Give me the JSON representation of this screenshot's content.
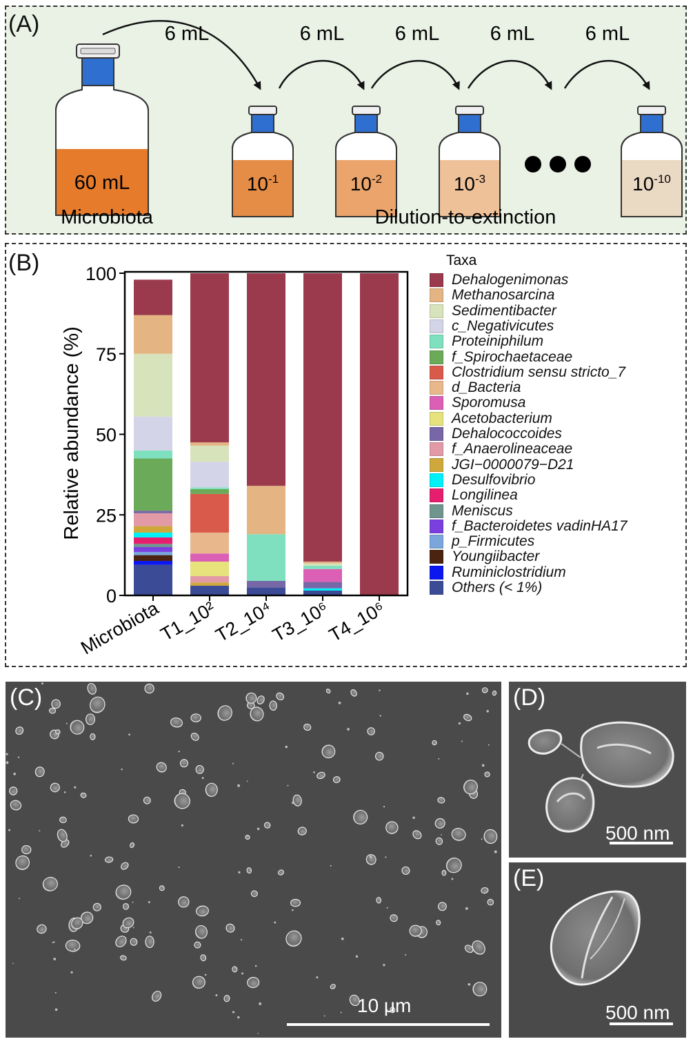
{
  "panelA": {
    "label": "(A)",
    "big_bottle": {
      "volume": "60 mL",
      "caption": "Microbiota"
    },
    "transfer_label": "6 mL",
    "bottles": [
      {
        "base": "10",
        "exp": "-1"
      },
      {
        "base": "10",
        "exp": "-2"
      },
      {
        "base": "10",
        "exp": "-3"
      },
      {
        "base": "10",
        "exp": "-10"
      }
    ],
    "caption": "Dilution-to-extinction"
  },
  "panelB": {
    "label": "(B)",
    "legend_title": "Taxa"
  },
  "chart_data": {
    "type": "bar",
    "stacked": true,
    "ylabel": "Relative abundance (%)",
    "ylim": [
      0,
      100
    ],
    "yticks": [
      0,
      25,
      50,
      75,
      100
    ],
    "categories": [
      "Microbiota",
      "T1_10²",
      "T2_10⁴",
      "T3_10⁶",
      "T4_10⁶"
    ],
    "series": [
      {
        "name": "Others (< 1%)",
        "color": "#3c4b96",
        "values": [
          9.5,
          3,
          2.5,
          1.5,
          0
        ]
      },
      {
        "name": "Ruminiclostridium",
        "color": "#0a17f0",
        "values": [
          1.2,
          0,
          0,
          0,
          0
        ]
      },
      {
        "name": "Youngiibacter",
        "color": "#4a2410",
        "values": [
          1.8,
          0,
          0,
          0,
          0
        ]
      },
      {
        "name": "p_Firmicutes",
        "color": "#7aa6dc",
        "values": [
          1.0,
          0,
          0,
          0,
          0
        ]
      },
      {
        "name": "f_Bacteroidetes vadinHA17",
        "color": "#7b3fe0",
        "values": [
          1.5,
          0,
          0,
          0,
          0
        ]
      },
      {
        "name": "Meniscus",
        "color": "#6f958f",
        "values": [
          1.0,
          0,
          0,
          0,
          0
        ]
      },
      {
        "name": "Longilinea",
        "color": "#e61e6e",
        "values": [
          2.0,
          0,
          0,
          0,
          0
        ]
      },
      {
        "name": "Desulfovibrio",
        "color": "#00f0f8",
        "values": [
          1.5,
          0,
          0,
          0.7,
          0
        ]
      },
      {
        "name": "JGI−0000079−D21",
        "color": "#cfa83c",
        "values": [
          2.0,
          1,
          0,
          0,
          0
        ]
      },
      {
        "name": "f_Anaerolineaceae",
        "color": "#e19aa6",
        "values": [
          4.0,
          2,
          0,
          0,
          0
        ]
      },
      {
        "name": "Dehalococcoides",
        "color": "#7767a6",
        "values": [
          0.8,
          0,
          2,
          2.0,
          0
        ]
      },
      {
        "name": "Acetobacterium",
        "color": "#e6e27c",
        "values": [
          0,
          4.5,
          0,
          0,
          0
        ]
      },
      {
        "name": "Sporomusa",
        "color": "#db5fb4",
        "values": [
          0,
          2.5,
          0,
          4.0,
          0
        ]
      },
      {
        "name": "d_Bacteria",
        "color": "#e8b88c",
        "values": [
          0,
          6.5,
          0,
          0,
          0
        ]
      },
      {
        "name": "Clostridium sensu stricto_7",
        "color": "#d9594a",
        "values": [
          0,
          12,
          0,
          0,
          0
        ]
      },
      {
        "name": "f_Spirochaetaceae",
        "color": "#6aaa58",
        "values": [
          16.2,
          1.5,
          0,
          0,
          0
        ]
      },
      {
        "name": "Proteiniphilum",
        "color": "#7fe0bf",
        "values": [
          2.5,
          0.5,
          14.5,
          1.0,
          0
        ]
      },
      {
        "name": "c_Negativicutes",
        "color": "#d4d4e8",
        "values": [
          10.5,
          8,
          0,
          0,
          0
        ]
      },
      {
        "name": "Sedimentibacter",
        "color": "#d7e3bb",
        "values": [
          19.5,
          5,
          0,
          0.7,
          0
        ]
      },
      {
        "name": "Methanosarcina",
        "color": "#e4b482",
        "values": [
          12.0,
          1,
          15,
          0.6,
          0
        ]
      },
      {
        "name": "Dehalogenimonas",
        "color": "#9b3a4c",
        "values": [
          11.0,
          52.5,
          66,
          89.5,
          100
        ]
      }
    ]
  },
  "panelC": {
    "label": "(C)",
    "scale": "10 μm"
  },
  "panelD": {
    "label": "(D)",
    "scale": "500 nm"
  },
  "panelE": {
    "label": "(E)",
    "scale": "500 nm"
  }
}
